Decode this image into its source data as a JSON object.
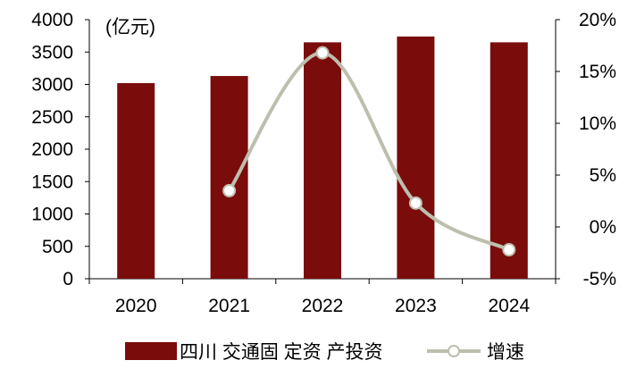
{
  "chart_data": {
    "type": "bar",
    "categories": [
      "2020",
      "2021",
      "2022",
      "2023",
      "2024"
    ],
    "series": [
      {
        "name": "四川 交通固 定资 产投资",
        "chart_type": "bar",
        "axis": "left",
        "color": "#7b0c0c",
        "values": [
          3020,
          3130,
          3650,
          3740,
          3650
        ]
      },
      {
        "name": "增速",
        "chart_type": "line",
        "axis": "right",
        "color": "#bdbfae",
        "smooth": true,
        "marker": "open-circle",
        "values": [
          null,
          3.5,
          16.8,
          2.3,
          -2.2
        ]
      }
    ],
    "y_left": {
      "unit_label": "(亿元)",
      "ylim": [
        0,
        4000
      ],
      "ticks": [
        0,
        500,
        1000,
        1500,
        2000,
        2500,
        3000,
        3500,
        4000
      ],
      "tick_labels": [
        "0",
        "500",
        "1000",
        "1500",
        "2000",
        "2500",
        "3000",
        "3500",
        "4000"
      ]
    },
    "y_right": {
      "ylim": [
        -5,
        20
      ],
      "ticks": [
        -5,
        0,
        5,
        10,
        15,
        20
      ],
      "tick_labels": [
        "-5%",
        "0%",
        "5%",
        "10%",
        "15%",
        "20%"
      ]
    },
    "grid": false,
    "legend_position": "bottom"
  }
}
